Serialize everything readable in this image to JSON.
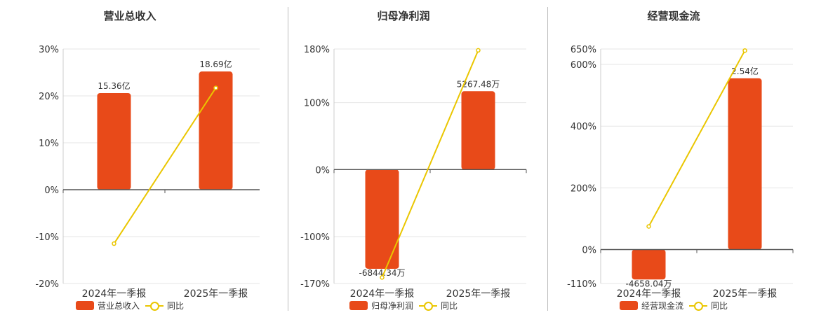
{
  "colors": {
    "bar": "#e84a19",
    "line": "#eac600",
    "grid": "#e6e6e6",
    "axis": "#555555",
    "text": "#333333"
  },
  "legend": {
    "line_label": "同比"
  },
  "chart_data": [
    {
      "type": "bar",
      "title": "营业总收入",
      "categories": [
        "2024年一季报",
        "2025年一季报"
      ],
      "bar_labels": [
        "15.36亿",
        "18.69亿"
      ],
      "series": [
        {
          "name": "营业总收入",
          "kind": "bar",
          "values": [
            20.6,
            25.2
          ]
        },
        {
          "name": "同比",
          "kind": "line",
          "values": [
            -11.5,
            21.7
          ]
        }
      ],
      "y_ticks": [
        30,
        20,
        10,
        0,
        -10,
        -20
      ],
      "y_tick_labels": [
        "30%",
        "20%",
        "10%",
        "0%",
        "-10%",
        "-20%"
      ],
      "ylim": [
        -20,
        30
      ],
      "grid": true,
      "legend_position": "bottom"
    },
    {
      "type": "bar",
      "title": "归母净利润",
      "categories": [
        "2024年一季报",
        "2025年一季报"
      ],
      "bar_labels": [
        "-6844.34万",
        "5267.48万"
      ],
      "series": [
        {
          "name": "归母净利润",
          "kind": "bar",
          "values": [
            -148,
            117
          ]
        },
        {
          "name": "同比",
          "kind": "line",
          "values": [
            -161,
            178
          ]
        }
      ],
      "y_ticks": [
        180,
        100,
        0,
        -100,
        -170
      ],
      "y_tick_labels": [
        "180%",
        "100%",
        "0%",
        "-100%",
        "-170%"
      ],
      "ylim": [
        -170,
        180
      ],
      "grid": true,
      "legend_position": "bottom"
    },
    {
      "type": "bar",
      "title": "经营现金流",
      "categories": [
        "2024年一季报",
        "2025年一季报"
      ],
      "bar_labels": [
        "-4658.04万",
        "2.54亿"
      ],
      "series": [
        {
          "name": "经营现金流",
          "kind": "bar",
          "values": [
            -97,
            555
          ]
        },
        {
          "name": "同比",
          "kind": "line",
          "values": [
            75,
            645
          ]
        }
      ],
      "y_ticks": [
        650,
        600,
        400,
        200,
        0,
        -110
      ],
      "y_tick_labels": [
        "650%",
        "600%",
        "400%",
        "200%",
        "0%",
        "-110%"
      ],
      "ylim": [
        -110,
        650
      ],
      "grid": true,
      "legend_position": "bottom"
    }
  ]
}
